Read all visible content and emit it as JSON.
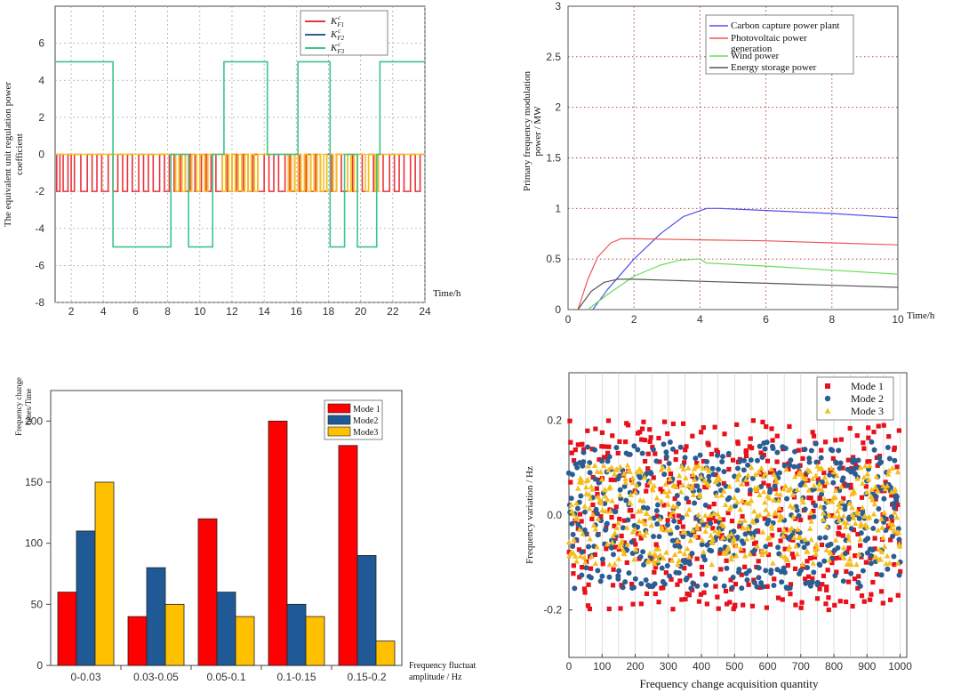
{
  "chart_data": [
    {
      "type": "line",
      "id": "chart1",
      "title": "",
      "ylabel_lines": [
        "The equivalent unit regulation power",
        "coefficient"
      ],
      "xlabel": "Time/h",
      "xlim": [
        1,
        24
      ],
      "ylim": [
        -8,
        8
      ],
      "xticks": [
        2,
        4,
        6,
        8,
        10,
        12,
        14,
        16,
        18,
        20,
        22,
        24
      ],
      "yticks": [
        -8,
        -6,
        -4,
        -2,
        0,
        2,
        4,
        6
      ],
      "legend": [
        "K_{F1}^{c}",
        "K_{F2}^{c}",
        "K_{F3}^{c}"
      ],
      "legend_position": "top-right",
      "series": [
        {
          "name": "K_{F1}^{c}",
          "color": "#e8343c",
          "style": "pulse",
          "base": 0,
          "low": -2,
          "intervals": [
            [
              1.1,
              1.3
            ],
            [
              1.5,
              1.8
            ],
            [
              2.0,
              2.2
            ],
            [
              2.6,
              3.0
            ],
            [
              3.3,
              3.6
            ],
            [
              3.9,
              4.3
            ],
            [
              4.6,
              4.9
            ],
            [
              5.2,
              5.5
            ],
            [
              5.8,
              6.2
            ],
            [
              6.5,
              6.8
            ],
            [
              7.1,
              7.5
            ],
            [
              7.8,
              8.1
            ],
            [
              8.4,
              8.8
            ],
            [
              9.1,
              9.4
            ],
            [
              9.7,
              10.1
            ],
            [
              10.4,
              10.7
            ],
            [
              11.0,
              11.4
            ],
            [
              11.7,
              12.0
            ],
            [
              12.3,
              12.7
            ],
            [
              13.0,
              13.3
            ],
            [
              13.6,
              14.0
            ],
            [
              14.3,
              14.6
            ],
            [
              14.9,
              15.3
            ],
            [
              15.6,
              15.9
            ],
            [
              16.2,
              16.6
            ],
            [
              16.9,
              17.2
            ],
            [
              17.5,
              17.9
            ],
            [
              18.2,
              18.5
            ],
            [
              18.8,
              19.2
            ],
            [
              19.5,
              19.8
            ],
            [
              20.1,
              20.5
            ],
            [
              20.8,
              21.1
            ],
            [
              21.4,
              21.8
            ],
            [
              22.1,
              22.4
            ],
            [
              22.7,
              23.1
            ],
            [
              23.4,
              23.7
            ]
          ]
        },
        {
          "name": "K_{F2}^{c}",
          "color": "#f5c21b",
          "style": "pulse",
          "base": 0,
          "low": -2,
          "intervals": [
            [
              8.5,
              8.7
            ],
            [
              8.9,
              9.1
            ],
            [
              9.3,
              9.5
            ],
            [
              9.8,
              10.0
            ],
            [
              10.3,
              10.5
            ],
            [
              11.4,
              11.6
            ],
            [
              11.8,
              12.0
            ],
            [
              12.2,
              12.4
            ],
            [
              12.6,
              12.8
            ],
            [
              13.0,
              13.2
            ],
            [
              13.4,
              13.6
            ],
            [
              15.5,
              15.7
            ],
            [
              15.9,
              16.1
            ],
            [
              16.3,
              16.5
            ],
            [
              16.7,
              16.9
            ],
            [
              17.1,
              17.3
            ],
            [
              17.5,
              17.7
            ],
            [
              17.9,
              18.1
            ],
            [
              18.3,
              18.5
            ],
            [
              19.2,
              19.4
            ],
            [
              19.6,
              19.8
            ],
            [
              20.3,
              20.5
            ],
            [
              20.9,
              21.1
            ]
          ]
        },
        {
          "name": "K_{F3}^{c}",
          "color": "#3ec489",
          "style": "step",
          "points": [
            [
              1,
              5
            ],
            [
              4.6,
              5
            ],
            [
              4.6,
              -5
            ],
            [
              8.2,
              -5
            ],
            [
              8.2,
              0
            ],
            [
              9.3,
              0
            ],
            [
              9.3,
              -5
            ],
            [
              10.8,
              -5
            ],
            [
              10.8,
              0
            ],
            [
              11.5,
              0
            ],
            [
              11.5,
              5
            ],
            [
              14.2,
              5
            ],
            [
              14.2,
              0
            ],
            [
              16.1,
              0
            ],
            [
              16.1,
              5
            ],
            [
              18.1,
              5
            ],
            [
              18.1,
              -5
            ],
            [
              19.0,
              -5
            ],
            [
              19.0,
              0
            ],
            [
              19.8,
              0
            ],
            [
              19.8,
              -5
            ],
            [
              21.0,
              -5
            ],
            [
              21.0,
              0
            ],
            [
              21.2,
              0
            ],
            [
              21.2,
              5
            ],
            [
              24,
              5
            ]
          ]
        }
      ]
    },
    {
      "type": "line",
      "id": "chart2",
      "title": "",
      "ylabel_lines": [
        "Primary frequency modulation",
        "power / MW"
      ],
      "xlabel": "Time/h",
      "xlim": [
        0,
        10
      ],
      "ylim": [
        0,
        3
      ],
      "xticks": [
        0,
        2,
        4,
        6,
        8,
        10
      ],
      "yticks": [
        0,
        0.5,
        1,
        1.5,
        2,
        2.5,
        3
      ],
      "legend_position": "top-right",
      "series": [
        {
          "name": "Carbon capture power plant",
          "color": "#5050ee",
          "points": [
            [
              0.75,
              0
            ],
            [
              1.2,
              0.2
            ],
            [
              2,
              0.5
            ],
            [
              2.8,
              0.75
            ],
            [
              3.5,
              0.92
            ],
            [
              4.2,
              1.0
            ],
            [
              4.6,
              1.0
            ],
            [
              6,
              0.98
            ],
            [
              8,
              0.95
            ],
            [
              10,
              0.91
            ]
          ]
        },
        {
          "name_lines": [
            "Photovoltaic power",
            "generation"
          ],
          "name": "Photovoltaic power generation",
          "color": "#ee5555",
          "points": [
            [
              0.3,
              0
            ],
            [
              0.6,
              0.3
            ],
            [
              0.9,
              0.52
            ],
            [
              1.3,
              0.66
            ],
            [
              1.6,
              0.7
            ],
            [
              2,
              0.7
            ],
            [
              4,
              0.69
            ],
            [
              6,
              0.68
            ],
            [
              8,
              0.66
            ],
            [
              10,
              0.64
            ]
          ]
        },
        {
          "name": "Wind power",
          "color": "#66dd55",
          "points": [
            [
              0.6,
              0
            ],
            [
              1.2,
              0.15
            ],
            [
              2,
              0.33
            ],
            [
              2.8,
              0.44
            ],
            [
              3.4,
              0.49
            ],
            [
              4,
              0.5
            ],
            [
              4.2,
              0.46
            ],
            [
              6,
              0.43
            ],
            [
              8,
              0.39
            ],
            [
              10,
              0.35
            ]
          ]
        },
        {
          "name": "Energy storage power",
          "color": "#555555",
          "points": [
            [
              0.3,
              0
            ],
            [
              0.7,
              0.18
            ],
            [
              1.1,
              0.27
            ],
            [
              1.5,
              0.3
            ],
            [
              2,
              0.3
            ],
            [
              4,
              0.28
            ],
            [
              6,
              0.26
            ],
            [
              8,
              0.24
            ],
            [
              10,
              0.22
            ]
          ]
        }
      ]
    },
    {
      "type": "bar",
      "id": "chart3",
      "title": "",
      "ylabel_lines": [
        "Frequency change",
        "times/Time"
      ],
      "xlabel_lines": [
        "Frequency fluctuation",
        "amplitude / Hz"
      ],
      "categories": [
        "0-0.03",
        "0.03-0.05",
        "0.05-0.1",
        "0.1-0.15",
        "0.15-0.2"
      ],
      "ylim": [
        0,
        225
      ],
      "yticks": [
        0,
        50,
        100,
        150,
        200
      ],
      "legend_position": "top-right",
      "series": [
        {
          "name": "Mode 1",
          "color": "#ff0000",
          "values": [
            60,
            40,
            120,
            200,
            180
          ]
        },
        {
          "name": "Mode2",
          "color": "#1f5a96",
          "values": [
            110,
            80,
            60,
            50,
            90
          ]
        },
        {
          "name": "Mode3",
          "color": "#ffc000",
          "values": [
            150,
            50,
            40,
            40,
            20
          ]
        }
      ]
    },
    {
      "type": "scatter",
      "id": "chart4",
      "title": "",
      "ylabel": "Frequency variation / Hz",
      "xlabel": "Frequency change acquisition quantity",
      "xlim": [
        0,
        1020
      ],
      "ylim": [
        -0.3,
        0.3
      ],
      "xticks": [
        0,
        100,
        200,
        300,
        400,
        500,
        600,
        700,
        800,
        900,
        1000
      ],
      "yticks": [
        -0.2,
        0.0,
        0.2
      ],
      "ytick_labels": [
        "-0.2",
        "0.0",
        "0.2"
      ],
      "n_points_per_series": 500,
      "legend_position": "top-right",
      "series": [
        {
          "name": "Mode 1",
          "color": "#e8101a",
          "marker": "square",
          "range": [
            -0.2,
            0.2
          ]
        },
        {
          "name": "Mode 2",
          "color": "#2b5d92",
          "marker": "circle",
          "range": [
            -0.155,
            0.155
          ]
        },
        {
          "name": "Mode 3",
          "color": "#f5be1c",
          "marker": "triangle",
          "range": [
            -0.105,
            0.105
          ]
        }
      ]
    }
  ]
}
